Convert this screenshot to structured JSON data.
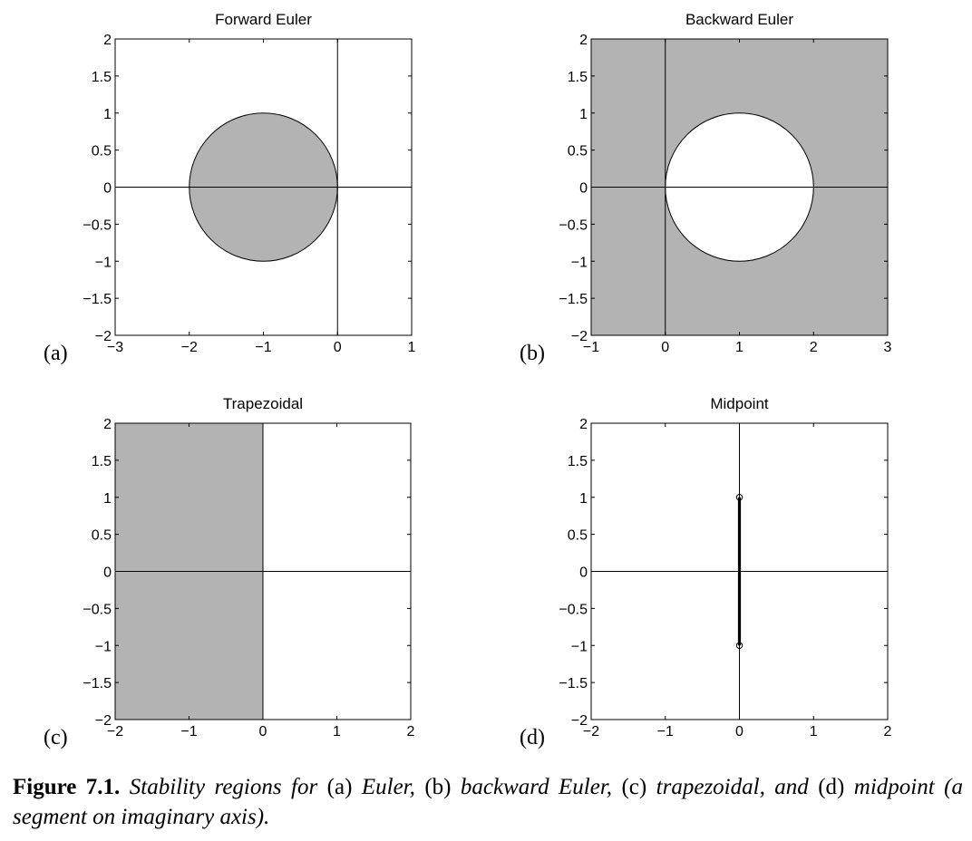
{
  "chart_data": [
    {
      "id": "a",
      "type": "area",
      "panel_letter": "(a)",
      "title": "Forward Euler",
      "xlim": [
        -3,
        1
      ],
      "ylim": [
        -2,
        2
      ],
      "xticks": [
        -3,
        -2,
        -1,
        0,
        1
      ],
      "yticks": [
        -2,
        -1.5,
        -1,
        -0.5,
        0,
        0.5,
        1,
        1.5,
        2
      ],
      "xticklabels": [
        "−3",
        "−2",
        "−1",
        "0",
        "1"
      ],
      "yticklabels": [
        "−2",
        "−1.5",
        "−1",
        "−0.5",
        "0",
        "0.5",
        "1",
        "1.5",
        "2"
      ],
      "region": {
        "shape": "disk",
        "center": [
          -1,
          0
        ],
        "radius": 1,
        "shaded": "inside"
      },
      "axes_lines": {
        "x": 0,
        "y": 0
      },
      "grid": false
    },
    {
      "id": "b",
      "type": "area",
      "panel_letter": "(b)",
      "title": "Backward Euler",
      "xlim": [
        -1,
        3
      ],
      "ylim": [
        -2,
        2
      ],
      "xticks": [
        -1,
        0,
        1,
        2,
        3
      ],
      "yticks": [
        -2,
        -1.5,
        -1,
        -0.5,
        0,
        0.5,
        1,
        1.5,
        2
      ],
      "xticklabels": [
        "−1",
        "0",
        "1",
        "2",
        "3"
      ],
      "yticklabels": [
        "−2",
        "−1.5",
        "−1",
        "−0.5",
        "0",
        "0.5",
        "1",
        "1.5",
        "2"
      ],
      "region": {
        "shape": "disk",
        "center": [
          1,
          0
        ],
        "radius": 1,
        "shaded": "outside"
      },
      "axes_lines": {
        "x": 0,
        "y": 0
      },
      "grid": false
    },
    {
      "id": "c",
      "type": "area",
      "panel_letter": "(c)",
      "title": "Trapezoidal",
      "xlim": [
        -2,
        2
      ],
      "ylim": [
        -2,
        2
      ],
      "xticks": [
        -2,
        -1,
        0,
        1,
        2
      ],
      "yticks": [
        -2,
        -1.5,
        -1,
        -0.5,
        0,
        0.5,
        1,
        1.5,
        2
      ],
      "xticklabels": [
        "−2",
        "−1",
        "0",
        "1",
        "2"
      ],
      "yticklabels": [
        "−2",
        "−1.5",
        "−1",
        "−0.5",
        "0",
        "0.5",
        "1",
        "1.5",
        "2"
      ],
      "region": {
        "shape": "half-plane",
        "x_max": 0,
        "shaded": "left"
      },
      "axes_lines": {
        "x": 0,
        "y": 0
      },
      "grid": false
    },
    {
      "id": "d",
      "type": "line",
      "panel_letter": "(d)",
      "title": "Midpoint",
      "xlim": [
        -2,
        2
      ],
      "ylim": [
        -2,
        2
      ],
      "xticks": [
        -2,
        -1,
        0,
        1,
        2
      ],
      "yticks": [
        -2,
        -1.5,
        -1,
        -0.5,
        0,
        0.5,
        1,
        1.5,
        2
      ],
      "xticklabels": [
        "−2",
        "−1",
        "0",
        "1",
        "2"
      ],
      "yticklabels": [
        "−2",
        "−1.5",
        "−1",
        "−0.5",
        "0",
        "0.5",
        "1",
        "1.5",
        "2"
      ],
      "region": {
        "shape": "segment",
        "x": [
          0,
          0
        ],
        "y": [
          -1,
          1
        ],
        "endpoint_markers": "circle"
      },
      "axes_lines": {
        "x": 0,
        "y": 0
      },
      "grid": false
    }
  ],
  "colors": {
    "shade": "#b3b3b3",
    "axes": "#000000",
    "background": "#ffffff"
  },
  "caption": {
    "label": "Figure 7.1.",
    "s1": " Stability regions for ",
    "s2": "(a)",
    "s3": " Euler, ",
    "s4": "(b)",
    "s5": " backward Euler, ",
    "s6": "(c)",
    "s7": " trapezoidal, and ",
    "s8": "(d)",
    "s9": " midpoint (a segment on imaginary axis)."
  }
}
